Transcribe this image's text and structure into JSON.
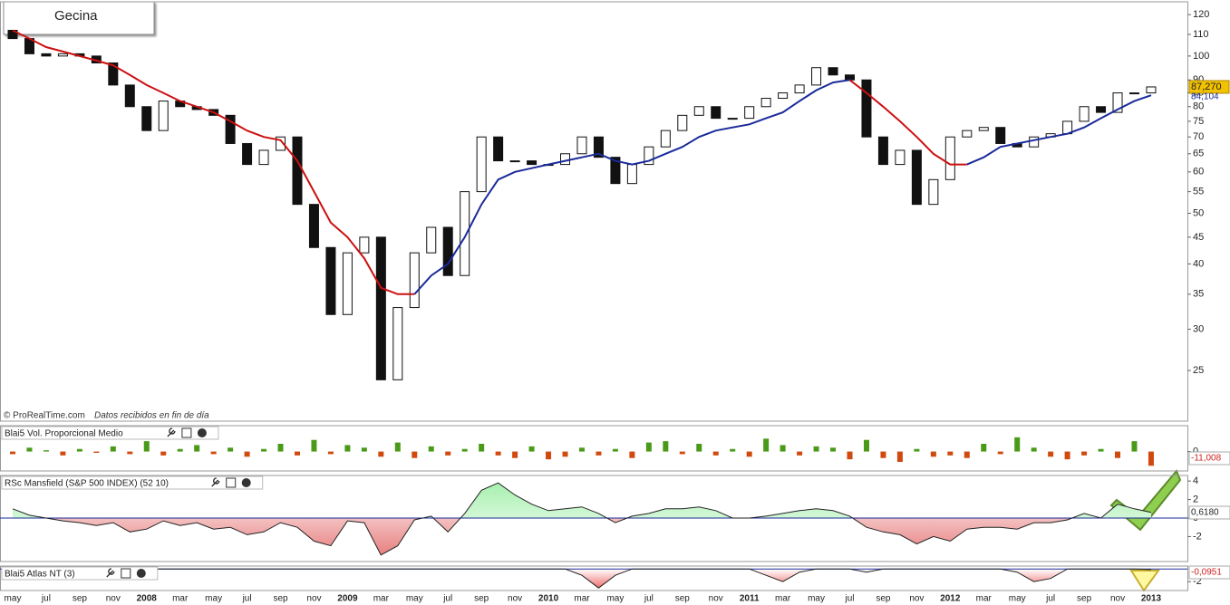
{
  "header": {
    "title": "Gecina",
    "copyright": "© ProRealTime.com",
    "note": "Datos recibidos en fin de día"
  },
  "chart_data": [
    {
      "type": "candlestick",
      "log_scale": true,
      "categories": [
        "may",
        null,
        "jul",
        null,
        "sep",
        null,
        "nov",
        null,
        "2008",
        null,
        "mar",
        null,
        "may",
        null,
        "jul",
        null,
        "sep",
        null,
        "nov",
        null,
        "2009",
        null,
        "mar",
        null,
        "may",
        null,
        "jul",
        null,
        "sep",
        null,
        "nov",
        null,
        "2010",
        null,
        "mar",
        null,
        "may",
        null,
        "jul",
        null,
        "sep",
        null,
        "nov",
        null,
        "2011",
        null,
        "mar",
        null,
        "may",
        null,
        "jul",
        null,
        "sep",
        null,
        "nov",
        null,
        "2012",
        null,
        "mar",
        null,
        "may",
        null,
        "jul",
        null,
        "sep",
        null,
        "nov",
        null,
        "2013"
      ],
      "open": [
        112,
        108,
        101,
        100,
        101,
        100,
        97,
        88,
        80,
        72,
        82,
        80,
        79,
        77,
        68,
        62,
        66,
        70,
        52,
        43,
        32,
        42,
        45,
        24,
        33,
        42,
        47,
        38,
        55,
        70,
        63,
        63,
        62,
        62,
        65,
        70,
        64,
        57,
        62,
        67,
        72,
        77,
        80,
        76,
        76,
        80,
        83,
        85,
        88,
        95,
        92,
        90,
        70,
        62,
        66,
        52,
        58,
        70,
        72,
        73,
        68,
        67,
        70,
        71,
        75,
        80,
        78,
        85,
        85
      ],
      "close": [
        108,
        101,
        100,
        101,
        100,
        97,
        88,
        80,
        72,
        82,
        80,
        79,
        77,
        68,
        62,
        66,
        70,
        52,
        43,
        32,
        42,
        45,
        24,
        33,
        42,
        47,
        38,
        55,
        70,
        63,
        63,
        62,
        62,
        65,
        70,
        64,
        57,
        62,
        67,
        72,
        77,
        80,
        76,
        76,
        80,
        83,
        85,
        88,
        95,
        92,
        90,
        70,
        62,
        66,
        52,
        58,
        70,
        72,
        73,
        68,
        67,
        70,
        71,
        75,
        80,
        78,
        85,
        85,
        87.27
      ],
      "up_color": "#ffffff",
      "down_color": "#111111",
      "series": [
        {
          "color": "#cc1010",
          "values": [
            112,
            108,
            104,
            102,
            100,
            98,
            96,
            92,
            88,
            85,
            82,
            80,
            78,
            75,
            72,
            70,
            69,
            63,
            55,
            48,
            45,
            41,
            36,
            35,
            35,
            null,
            null,
            null,
            null,
            null,
            null,
            null,
            null,
            null,
            null,
            null,
            null,
            null,
            null,
            null,
            null,
            null,
            null,
            null,
            null,
            null,
            null,
            null,
            null,
            null,
            90,
            85,
            80,
            75,
            70,
            65,
            62,
            62,
            null,
            null,
            null,
            null,
            null,
            null,
            null,
            null,
            null,
            null,
            null
          ]
        },
        {
          "color": "#1a2a9a",
          "values": [
            null,
            null,
            null,
            null,
            null,
            null,
            null,
            null,
            null,
            null,
            null,
            null,
            null,
            null,
            null,
            null,
            null,
            null,
            null,
            null,
            null,
            null,
            null,
            null,
            35,
            38,
            40,
            45,
            52,
            58,
            60,
            61,
            62,
            63,
            64,
            65,
            63,
            62,
            63,
            65,
            67,
            70,
            72,
            73,
            74,
            76,
            78,
            82,
            86,
            89,
            90,
            null,
            null,
            null,
            null,
            null,
            null,
            62,
            64,
            67,
            68,
            69,
            70,
            71,
            73,
            76,
            79,
            82,
            84.104
          ]
        }
      ],
      "price_label": "87,270",
      "ma_label": "84,104",
      "ylim": [
        20,
        127
      ],
      "yticks": [
        25,
        30,
        35,
        40,
        45,
        50,
        55,
        60,
        65,
        70,
        75,
        80,
        85,
        90,
        100,
        110,
        120
      ]
    },
    {
      "type": "bar",
      "title": "Blai5 Vol. Proporcional Medio",
      "up_color": "#4a9a1a",
      "down_color": "#d04a10",
      "values": [
        -2,
        3,
        1,
        -3,
        2,
        -1,
        4,
        -2,
        8,
        -3,
        2,
        5,
        -2,
        3,
        -4,
        2,
        6,
        -3,
        9,
        -2,
        5,
        3,
        -4,
        7,
        -5,
        4,
        -3,
        2,
        6,
        -3,
        -5,
        4,
        -6,
        -4,
        3,
        -3,
        2,
        -5,
        7,
        8,
        -2,
        6,
        -3,
        2,
        -4,
        10,
        5,
        -3,
        4,
        3,
        -6,
        9,
        -5,
        -8,
        2,
        -4,
        -3,
        -5,
        6,
        -2,
        11,
        3,
        -4,
        -6,
        -3,
        2,
        -5,
        8,
        -11.008
      ],
      "last_label": "-11,008",
      "ylim": [
        -15,
        20
      ],
      "yticks": [
        0
      ]
    },
    {
      "type": "area",
      "title": "RSc Mansfield (S&P 500 INDEX) (52 10)",
      "up_color": "#a8f0b0",
      "down_color": "#e88080",
      "values": [
        1,
        0.3,
        0,
        -0.3,
        -0.5,
        -0.8,
        -0.5,
        -1.5,
        -1.2,
        -0.3,
        -0.8,
        -0.5,
        -1.2,
        -1,
        -1.8,
        -1.5,
        -0.5,
        -1,
        -2.5,
        -3,
        -0.3,
        -0.5,
        -4,
        -3,
        -0.2,
        0.2,
        -1.5,
        0.5,
        3,
        3.8,
        2.5,
        1.5,
        0.8,
        1,
        1.2,
        0.5,
        -0.5,
        0.2,
        0.5,
        1,
        1,
        1.2,
        0.8,
        0,
        0,
        0.2,
        0.5,
        0.8,
        1,
        0.8,
        0.2,
        -1,
        -1.5,
        -1.8,
        -2.8,
        -2,
        -2.5,
        -1.2,
        -1,
        -1,
        -1.2,
        -0.5,
        -0.5,
        -0.2,
        0.5,
        0,
        1.5,
        1,
        0.618
      ],
      "last_label": "0,6180",
      "ylim": [
        -4.7,
        4.6
      ],
      "yticks": [
        4,
        2,
        0,
        -2
      ]
    },
    {
      "type": "area",
      "title": "Blai5 Atlas NT (3)",
      "up_color": "#a8f0b0",
      "down_color": "#f07070",
      "values": [
        0,
        0,
        0,
        0,
        0,
        0,
        0,
        0,
        0,
        0,
        0,
        0,
        0,
        0,
        0,
        0,
        0,
        0,
        0,
        0,
        0,
        0,
        0,
        0,
        0,
        0,
        0,
        0,
        0,
        0,
        0,
        0,
        0,
        0,
        -1,
        -3,
        -1,
        0,
        0,
        0,
        0,
        0,
        0,
        0,
        0,
        -1,
        -2,
        -0.5,
        0,
        0,
        0,
        -0.5,
        0,
        0,
        0,
        0,
        0,
        0,
        0,
        0,
        -0.5,
        -2,
        -1.5,
        0,
        0,
        0,
        0,
        0,
        -0.0951
      ],
      "last_label": "-0,0951",
      "ylim": [
        -3.4,
        0.46
      ],
      "yticks": [
        -2
      ]
    }
  ]
}
